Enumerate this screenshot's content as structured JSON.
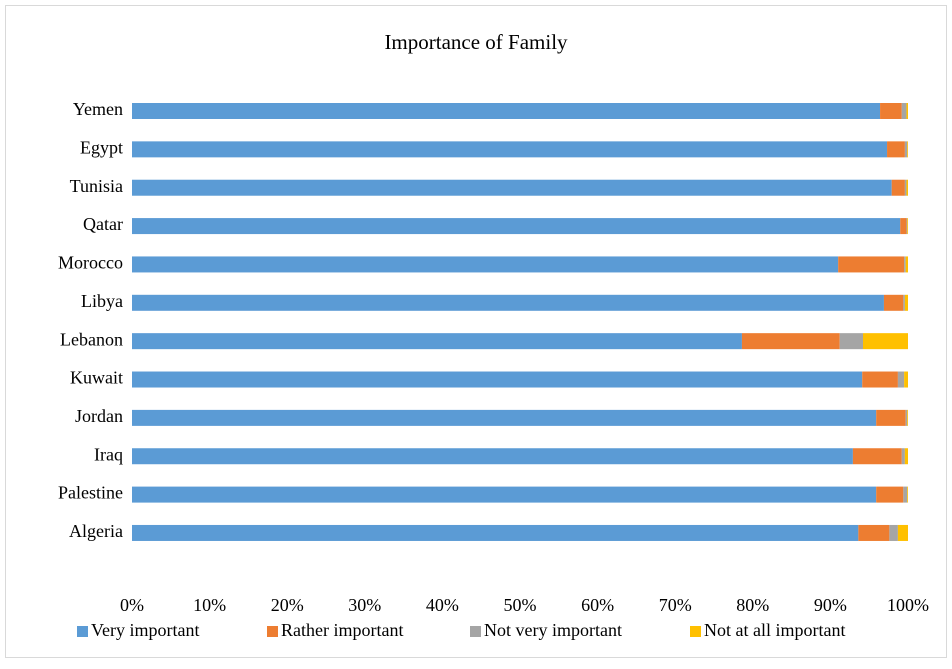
{
  "chart_data": {
    "type": "stacked-barh",
    "title": "Importance of Family",
    "categories": [
      "Yemen",
      "Egypt",
      "Tunisia",
      "Qatar",
      "Morocco",
      "Libya",
      "Lebanon",
      "Kuwait",
      "Jordan",
      "Iraq",
      "Palestine",
      "Algeria"
    ],
    "series": [
      {
        "name": "Very important",
        "color": "#5b9bd5",
        "values": [
          96.4,
          97.3,
          97.9,
          99.0,
          91.0,
          96.9,
          78.6,
          94.1,
          95.9,
          92.9,
          95.9,
          93.6
        ]
      },
      {
        "name": "Rather important",
        "color": "#ed7d31",
        "values": [
          2.8,
          2.3,
          1.7,
          0.8,
          8.5,
          2.5,
          12.6,
          4.6,
          3.8,
          6.3,
          3.5,
          4.0
        ]
      },
      {
        "name": "Not very important",
        "color": "#a5a5a5",
        "values": [
          0.6,
          0.3,
          0.2,
          0.1,
          0.2,
          0.2,
          3.0,
          0.8,
          0.2,
          0.4,
          0.5,
          1.1
        ]
      },
      {
        "name": "Not at all important",
        "color": "#ffc000",
        "values": [
          0.2,
          0.1,
          0.2,
          0.1,
          0.3,
          0.4,
          5.8,
          0.5,
          0.1,
          0.4,
          0.1,
          1.3
        ]
      }
    ],
    "xlim": [
      0,
      100
    ],
    "xticks": [
      {
        "value": 0,
        "label": "0%"
      },
      {
        "value": 10,
        "label": "10%"
      },
      {
        "value": 20,
        "label": "20%"
      },
      {
        "value": 30,
        "label": "30%"
      },
      {
        "value": 40,
        "label": "40%"
      },
      {
        "value": 50,
        "label": "50%"
      },
      {
        "value": 60,
        "label": "60%"
      },
      {
        "value": 70,
        "label": "70%"
      },
      {
        "value": 80,
        "label": "80%"
      },
      {
        "value": 90,
        "label": "90%"
      },
      {
        "value": 100,
        "label": "100%"
      }
    ],
    "grid": false,
    "legend": "bottom"
  }
}
